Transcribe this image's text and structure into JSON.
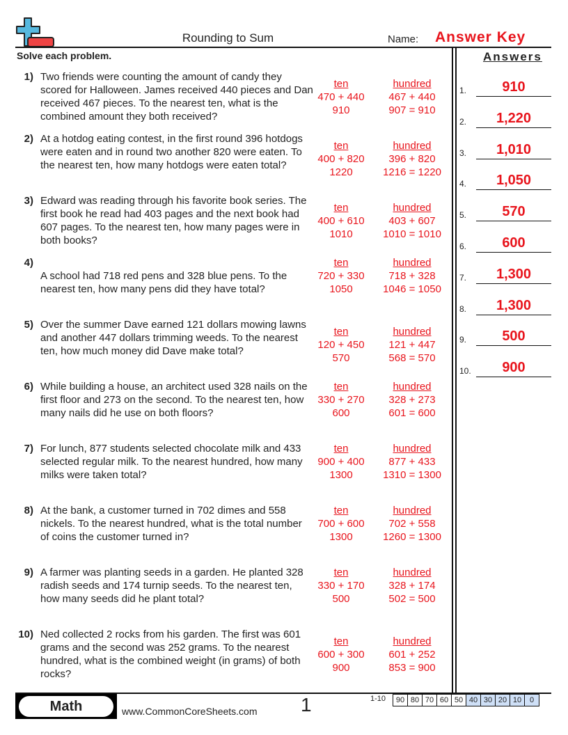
{
  "header": {
    "title": "Rounding to Sum",
    "name_label": "Name:",
    "answer_key": "Answer Key",
    "instructions": "Solve each problem.",
    "answers_title": "Answers",
    "logo": "plus-minus-logo-icon"
  },
  "colors": {
    "answer": "#e8141c",
    "score_highlight": "#cfe0f7"
  },
  "problems": [
    {
      "num": "1)",
      "text": "Two friends were counting the amount of candy they scored for Halloween. James received 440 pieces and Dan received 467 pieces. To the nearest ten, what is the combined amount they both received?",
      "ten": {
        "label": "ten",
        "expr": "470 + 440",
        "result": "910"
      },
      "hundred": {
        "label": "hundred",
        "expr": "467 + 440",
        "result": "907 = 910"
      }
    },
    {
      "num": "2)",
      "text": "At a hotdog eating contest, in the first round 396 hotdogs were eaten and in round two another 820 were eaten. To the nearest ten, how many hotdogs were eaten total?",
      "ten": {
        "label": "ten",
        "expr": "400 + 820",
        "result": "1220"
      },
      "hundred": {
        "label": "hundred",
        "expr": "396 + 820",
        "result": "1216 = 1220"
      }
    },
    {
      "num": "3)",
      "text": "Edward was reading through his favorite book series. The first book he read had 403 pages and the next book had 607 pages. To the nearest ten, how many pages were in both books?",
      "ten": {
        "label": "ten",
        "expr": "400 + 610",
        "result": "1010"
      },
      "hundred": {
        "label": "hundred",
        "expr": "403 + 607",
        "result": "1010 = 1010"
      }
    },
    {
      "num": "4)",
      "text": "A school had 718 red pens and 328 blue pens. To the nearest ten, how many pens did they have total?",
      "ten": {
        "label": "ten",
        "expr": "720 + 330",
        "result": "1050"
      },
      "hundred": {
        "label": "hundred",
        "expr": "718 + 328",
        "result": "1046 = 1050"
      }
    },
    {
      "num": "5)",
      "text": "Over the summer Dave earned 121 dollars mowing lawns and another 447 dollars trimming weeds. To the nearest ten, how much money did Dave make total?",
      "ten": {
        "label": "ten",
        "expr": "120 + 450",
        "result": "570"
      },
      "hundred": {
        "label": "hundred",
        "expr": "121 + 447",
        "result": "568 = 570"
      }
    },
    {
      "num": "6)",
      "text": "While building a house, an architect used 328 nails on the first floor and 273 on the second. To the nearest ten, how many nails did he use on both floors?",
      "ten": {
        "label": "ten",
        "expr": "330 + 270",
        "result": "600"
      },
      "hundred": {
        "label": "hundred",
        "expr": "328 + 273",
        "result": "601 = 600"
      }
    },
    {
      "num": "7)",
      "text": "For lunch, 877 students selected chocolate milk and 433 selected regular milk. To the nearest hundred, how many milks were taken total?",
      "ten": {
        "label": "ten",
        "expr": "900 + 400",
        "result": "1300"
      },
      "hundred": {
        "label": "hundred",
        "expr": "877 + 433",
        "result": "1310 = 1300"
      }
    },
    {
      "num": "8)",
      "text": "At the bank, a customer turned in 702 dimes and 558 nickels. To the nearest hundred, what is the total number of coins the customer turned in?",
      "ten": {
        "label": "ten",
        "expr": "700 + 600",
        "result": "1300"
      },
      "hundred": {
        "label": "hundred",
        "expr": "702 + 558",
        "result": "1260 = 1300"
      }
    },
    {
      "num": "9)",
      "text": "A farmer was planting seeds in a garden. He planted 328 radish seeds and 174 turnip seeds. To the nearest ten, how many seeds did he plant total?",
      "ten": {
        "label": "ten",
        "expr": "330 + 170",
        "result": "500"
      },
      "hundred": {
        "label": "hundred",
        "expr": "328 + 174",
        "result": "502 = 500"
      }
    },
    {
      "num": "10)",
      "text": "Ned collected 2 rocks from his garden. The first was 601 grams and the second was 252 grams. To the nearest hundred, what is the combined weight (in grams) of both rocks?",
      "ten": {
        "label": "ten",
        "expr": "600 + 300",
        "result": "900"
      },
      "hundred": {
        "label": "hundred",
        "expr": "601 + 252",
        "result": "853 = 900"
      }
    }
  ],
  "answers": [
    {
      "num": "1.",
      "value": "910"
    },
    {
      "num": "2.",
      "value": "1,220"
    },
    {
      "num": "3.",
      "value": "1,010"
    },
    {
      "num": "4.",
      "value": "1,050"
    },
    {
      "num": "5.",
      "value": "570"
    },
    {
      "num": "6.",
      "value": "600"
    },
    {
      "num": "7.",
      "value": "1,300"
    },
    {
      "num": "8.",
      "value": "1,300"
    },
    {
      "num": "9.",
      "value": "500"
    },
    {
      "num": "10.",
      "value": "900"
    }
  ],
  "footer": {
    "subject": "Math",
    "site": "www.CommonCoreSheets.com",
    "page": "1",
    "score_label": "1-10",
    "scores": [
      "90",
      "80",
      "70",
      "60",
      "50",
      "40",
      "30",
      "20",
      "10",
      "0"
    ]
  }
}
